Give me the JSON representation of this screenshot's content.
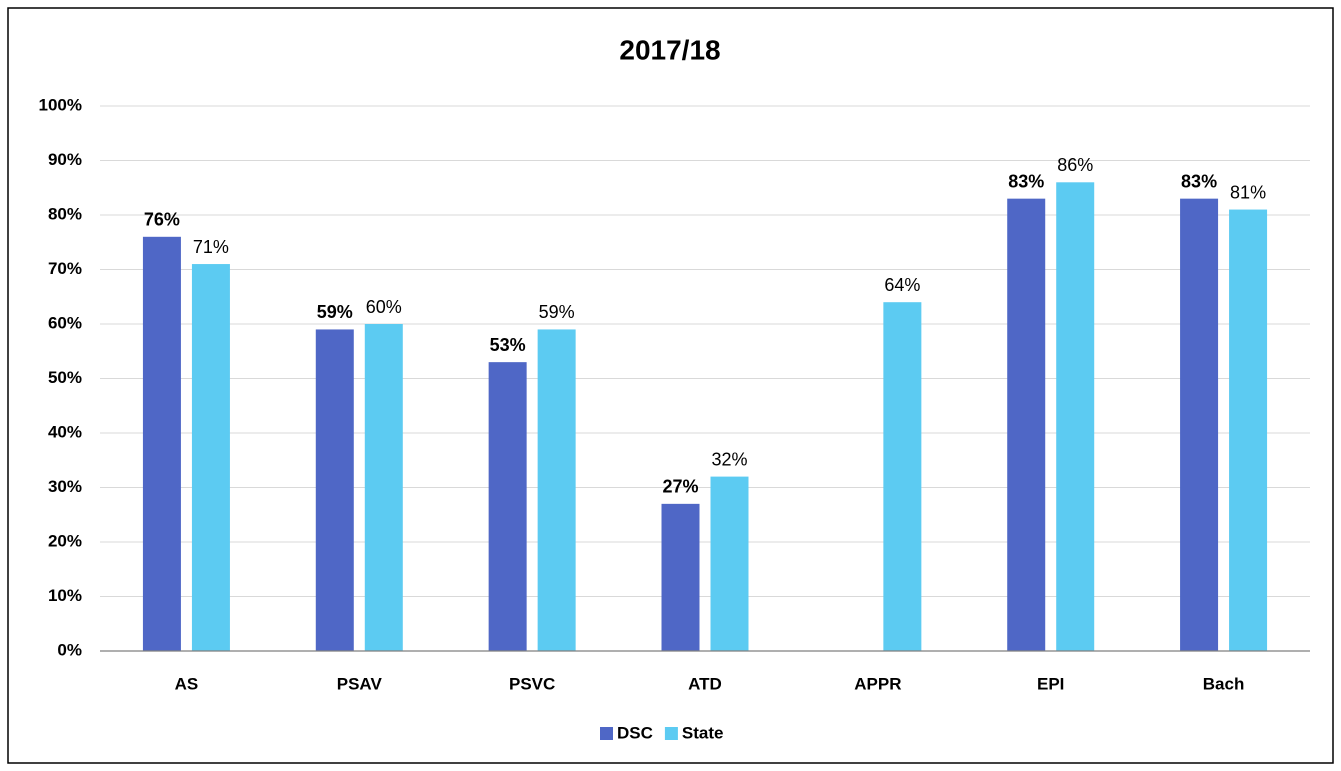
{
  "chart_data": {
    "type": "bar",
    "title": "2017/18",
    "categories": [
      "AS",
      "PSAV",
      "PSVC",
      "ATD",
      "APPR",
      "EPI",
      "Bach"
    ],
    "series": [
      {
        "name": "DSC",
        "color": "#4f67c6",
        "values": [
          76,
          59,
          53,
          27,
          null,
          83,
          83
        ],
        "value_labels": [
          "76%",
          "59%",
          "53%",
          "27%",
          null,
          "83%",
          "83%"
        ]
      },
      {
        "name": "State",
        "color": "#5ccbf2",
        "values": [
          71,
          60,
          59,
          32,
          64,
          86,
          81
        ],
        "value_labels": [
          "71%",
          "60%",
          "59%",
          "32%",
          "64%",
          "86%",
          "81%"
        ]
      }
    ],
    "ylim": [
      0,
      100
    ],
    "yticks": [
      {
        "value": 0,
        "label": "0%"
      },
      {
        "value": 10,
        "label": "10%"
      },
      {
        "value": 20,
        "label": "20%"
      },
      {
        "value": 30,
        "label": "30%"
      },
      {
        "value": 40,
        "label": "40%"
      },
      {
        "value": 50,
        "label": "50%"
      },
      {
        "value": 60,
        "label": "60%"
      },
      {
        "value": 70,
        "label": "70%"
      },
      {
        "value": 80,
        "label": "80%"
      },
      {
        "value": 90,
        "label": "90%"
      },
      {
        "value": 100,
        "label": "100%"
      }
    ],
    "grid": true,
    "legend": "bottom"
  }
}
